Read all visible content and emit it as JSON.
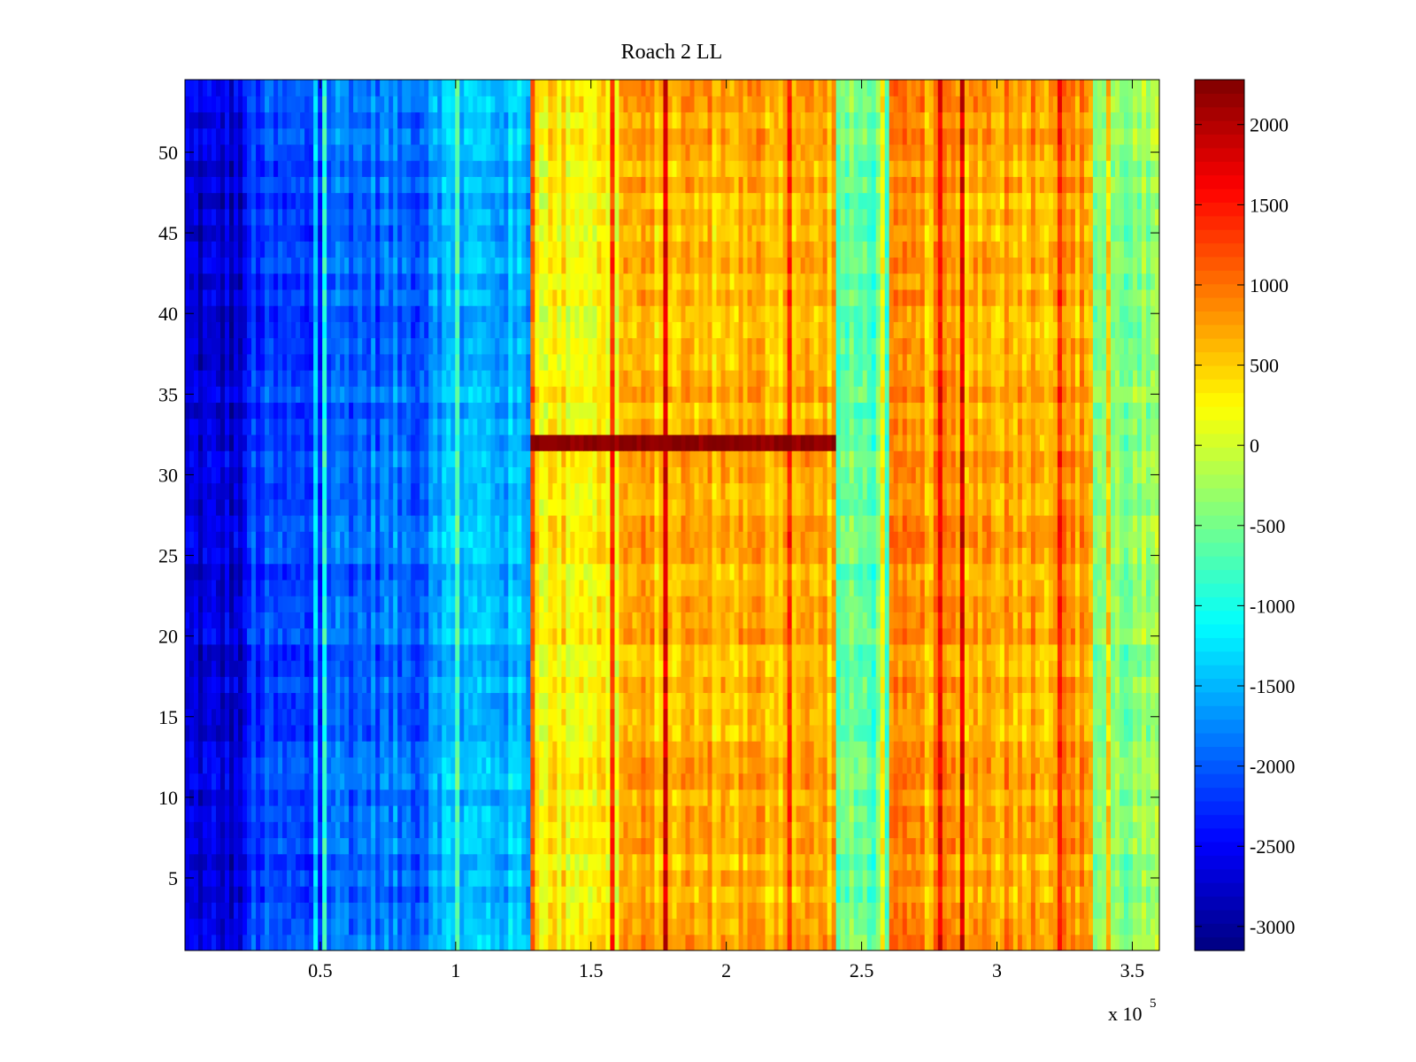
{
  "chart_data": {
    "type": "heatmap",
    "title": "Roach 2 LL",
    "xlabel": "",
    "ylabel": "",
    "x_multiplier_label": {
      "prefix": "x 10",
      "exponent": "5"
    },
    "xlim": [
      0,
      3.6
    ],
    "ylim": [
      0.5,
      54.5
    ],
    "x_ticks": [
      0.5,
      1,
      1.5,
      2,
      2.5,
      3,
      3.5
    ],
    "x_tick_labels": [
      "0.5",
      "1",
      "1.5",
      "2",
      "2.5",
      "3",
      "3.5"
    ],
    "y_ticks": [
      5,
      10,
      15,
      20,
      25,
      30,
      35,
      40,
      45,
      50
    ],
    "y_tick_labels": [
      "5",
      "10",
      "15",
      "20",
      "25",
      "30",
      "35",
      "40",
      "45",
      "50"
    ],
    "colormap": "jet",
    "clim": [
      -3150,
      2280
    ],
    "colorbar_ticks": [
      2000,
      1500,
      1000,
      500,
      0,
      -500,
      -1000,
      -1500,
      -2000,
      -2500,
      -3000
    ],
    "colorbar_tick_labels": [
      "2000",
      "1500",
      "1000",
      "500",
      "0",
      "-500",
      "-1000",
      "-1500",
      "-2000",
      "-2500",
      "-3000"
    ],
    "rows": 54,
    "column_segments": [
      {
        "x_start": 0.0,
        "x_end": 0.23,
        "approx_value": -2700
      },
      {
        "x_start": 0.23,
        "x_end": 0.5,
        "approx_value": -2200
      },
      {
        "x_start": 0.5,
        "x_end": 0.9,
        "approx_value": -1900
      },
      {
        "x_start": 0.9,
        "x_end": 1.28,
        "approx_value": -1500
      },
      {
        "x_start": 1.28,
        "x_end": 1.6,
        "approx_value": 300
      },
      {
        "x_start": 1.6,
        "x_end": 2.4,
        "approx_value": 650
      },
      {
        "x_start": 2.4,
        "x_end": 2.6,
        "approx_value": -600
      },
      {
        "x_start": 2.6,
        "x_end": 3.35,
        "approx_value": 750
      },
      {
        "x_start": 3.35,
        "x_end": 3.6,
        "approx_value": -400
      }
    ],
    "horizontal_band": {
      "row": 32,
      "x_start": 1.28,
      "x_end": 2.4,
      "approx_value": 2200
    },
    "colors": {
      "background": "#ffffff",
      "axes": "#000000"
    }
  }
}
